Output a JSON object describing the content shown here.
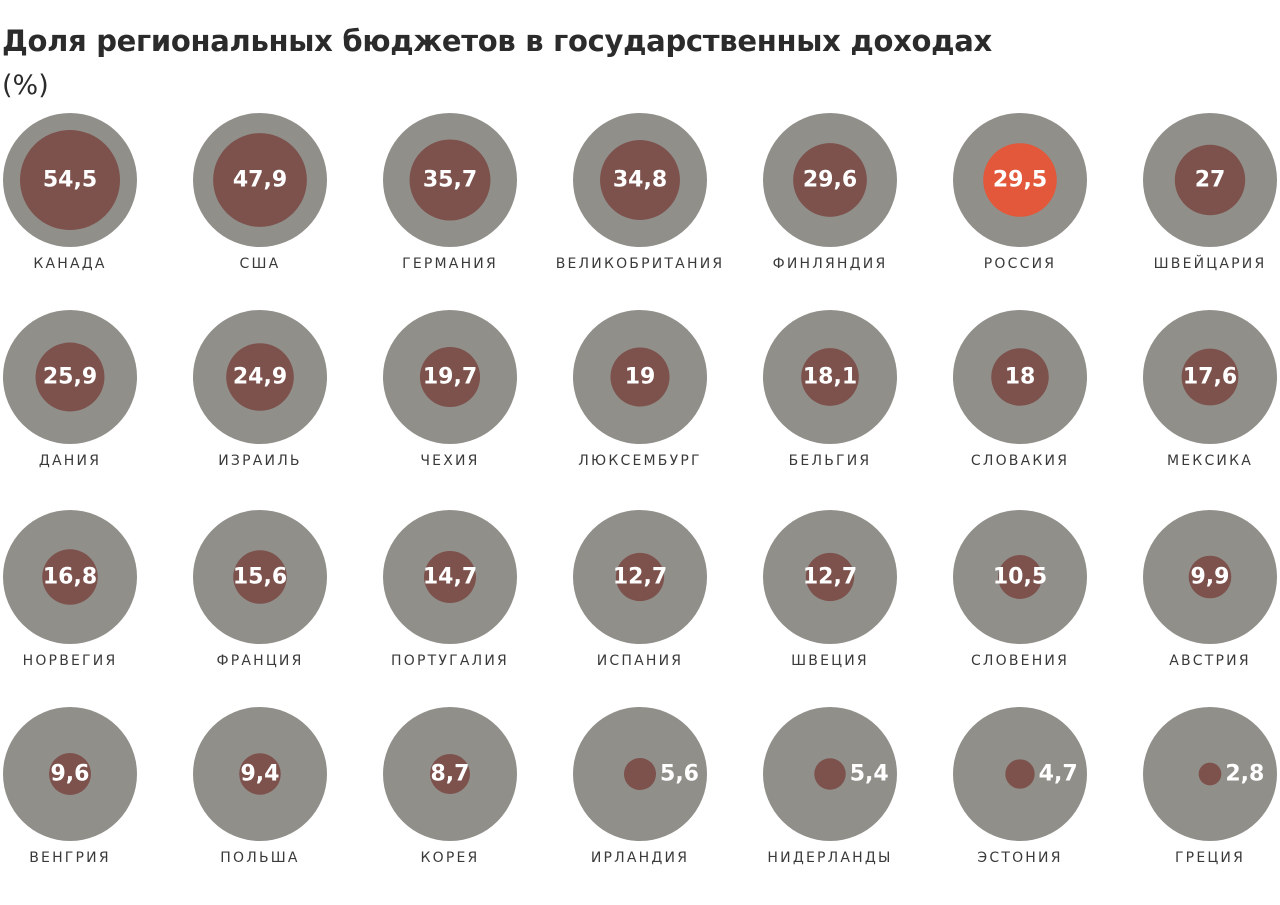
{
  "chart_data": {
    "type": "bubble-grid",
    "title": "Доля региональных бюджетов в государственных доходах",
    "subtitle": "(%)",
    "unit": "%",
    "max_value": 100,
    "colors": {
      "outer": "#918f8a",
      "inner": "#7d514c",
      "highlight": "#e3573a",
      "value_text": "#ffffff",
      "label_text": "#3a3a3a"
    },
    "highlight": "РОССИЯ",
    "items": [
      {
        "label": "КАНАДА",
        "value": 54.5,
        "display": "54,5"
      },
      {
        "label": "США",
        "value": 47.9,
        "display": "47,9"
      },
      {
        "label": "ГЕРМАНИЯ",
        "value": 35.7,
        "display": "35,7"
      },
      {
        "label": "ВЕЛИКОБРИТАНИЯ",
        "value": 34.8,
        "display": "34,8"
      },
      {
        "label": "ФИНЛЯНДИЯ",
        "value": 29.6,
        "display": "29,6"
      },
      {
        "label": "РОССИЯ",
        "value": 29.5,
        "display": "29,5"
      },
      {
        "label": "ШВЕЙЦАРИЯ",
        "value": 27,
        "display": "27"
      },
      {
        "label": "ДАНИЯ",
        "value": 25.9,
        "display": "25,9"
      },
      {
        "label": "ИЗРАИЛЬ",
        "value": 24.9,
        "display": "24,9"
      },
      {
        "label": "ЧЕХИЯ",
        "value": 19.7,
        "display": "19,7"
      },
      {
        "label": "ЛЮКСЕМБУРГ",
        "value": 19,
        "display": "19"
      },
      {
        "label": "БЕЛЬГИЯ",
        "value": 18.1,
        "display": "18,1"
      },
      {
        "label": "СЛОВАКИЯ",
        "value": 18,
        "display": "18"
      },
      {
        "label": "МЕКСИКА",
        "value": 17.6,
        "display": "17,6"
      },
      {
        "label": "НОРВЕГИЯ",
        "value": 16.8,
        "display": "16,8"
      },
      {
        "label": "ФРАНЦИЯ",
        "value": 15.6,
        "display": "15,6"
      },
      {
        "label": "ПОРТУГАЛИЯ",
        "value": 14.7,
        "display": "14,7"
      },
      {
        "label": "ИСПАНИЯ",
        "value": 12.7,
        "display": "12,7"
      },
      {
        "label": "ШВЕЦИЯ",
        "value": 12.7,
        "display": "12,7"
      },
      {
        "label": "СЛОВЕНИЯ",
        "value": 10.5,
        "display": "10,5"
      },
      {
        "label": "АВСТРИЯ",
        "value": 9.9,
        "display": "9,9"
      },
      {
        "label": "ВЕНГРИЯ",
        "value": 9.6,
        "display": "9,6"
      },
      {
        "label": "ПОЛЬША",
        "value": 9.4,
        "display": "9,4"
      },
      {
        "label": "КОРЕЯ",
        "value": 8.7,
        "display": "8,7"
      },
      {
        "label": "ИРЛАНДИЯ",
        "value": 5.6,
        "display": "5,6"
      },
      {
        "label": "НИДЕРЛАНДЫ",
        "value": 5.4,
        "display": "5,4"
      },
      {
        "label": "ЭСТОНИЯ",
        "value": 4.7,
        "display": "4,7"
      },
      {
        "label": "ГРЕЦИЯ",
        "value": 2.8,
        "display": "2,8"
      }
    ]
  }
}
